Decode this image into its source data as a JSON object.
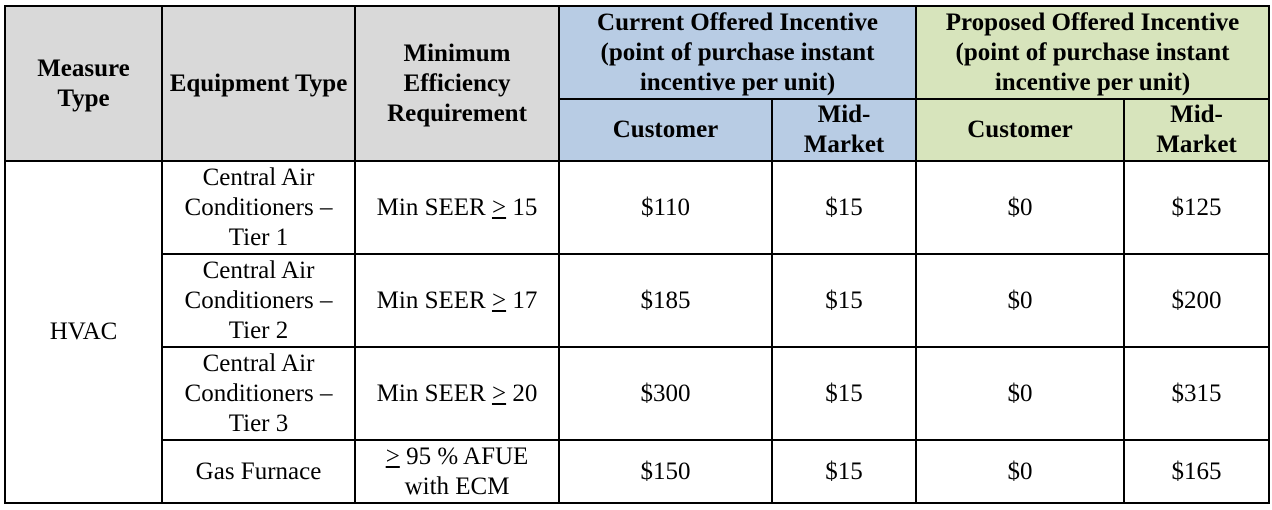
{
  "header": {
    "measure_type": "Measure Type",
    "equipment_type": "Equipment Type",
    "min_efficiency": "Minimum Efficiency Requirement",
    "current_group": "Current Offered Incentive (point of purchase instant incentive per unit)",
    "proposed_group": "Proposed Offered Incentive (point of purchase instant incentive per unit)",
    "current_customer": "Customer",
    "current_midmarket": "Mid-Market",
    "proposed_customer": "Customer",
    "proposed_midmarket": "Mid-Market"
  },
  "colors": {
    "gray_header": "#d9d9d9",
    "blue_header": "#b8cce4",
    "green_header": "#d7e4bc"
  },
  "measure_type": "HVAC",
  "rows": [
    {
      "equipment": "Central Air Conditioners – Tier 1",
      "efficiency_prefix": "Min SEER ",
      "efficiency_symbol": ">",
      "efficiency_suffix": " 15",
      "current_customer": "$110",
      "current_midmarket": "$15",
      "proposed_customer": "$0",
      "proposed_midmarket": "$125"
    },
    {
      "equipment": "Central Air Conditioners – Tier 2",
      "efficiency_prefix": "Min SEER ",
      "efficiency_symbol": ">",
      "efficiency_suffix": " 17",
      "current_customer": "$185",
      "current_midmarket": "$15",
      "proposed_customer": "$0",
      "proposed_midmarket": "$200"
    },
    {
      "equipment": "Central Air Conditioners – Tier 3",
      "efficiency_prefix": "Min SEER ",
      "efficiency_symbol": ">",
      "efficiency_suffix": " 20",
      "current_customer": "$300",
      "current_midmarket": "$15",
      "proposed_customer": "$0",
      "proposed_midmarket": "$315"
    },
    {
      "equipment": "Gas Furnace",
      "efficiency_prefix": "",
      "efficiency_symbol": ">",
      "efficiency_suffix": " 95 % AFUE with ECM",
      "current_customer": "$150",
      "current_midmarket": "$15",
      "proposed_customer": "$0",
      "proposed_midmarket": "$165"
    }
  ]
}
